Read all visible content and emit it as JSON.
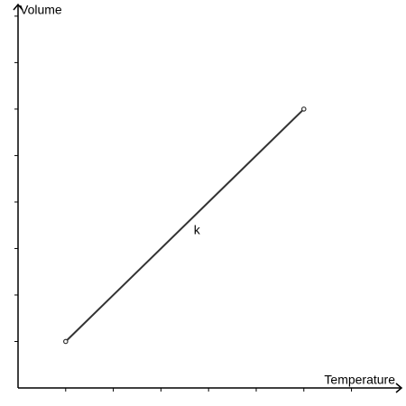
{
  "chart_data": {
    "type": "line",
    "x_label": "Temperature",
    "y_label": "Volume",
    "annotation": "k",
    "x": [
      1,
      6
    ],
    "series": [
      {
        "values": [
          1,
          6
        ],
        "color": "#333333"
      }
    ],
    "xlim": [
      0,
      8.05
    ],
    "ylim": [
      0,
      8.25
    ],
    "xticks": [
      1,
      2,
      3,
      4,
      5,
      6,
      7
    ],
    "yticks": [
      1,
      2,
      3,
      4,
      5,
      6,
      7,
      8
    ]
  }
}
